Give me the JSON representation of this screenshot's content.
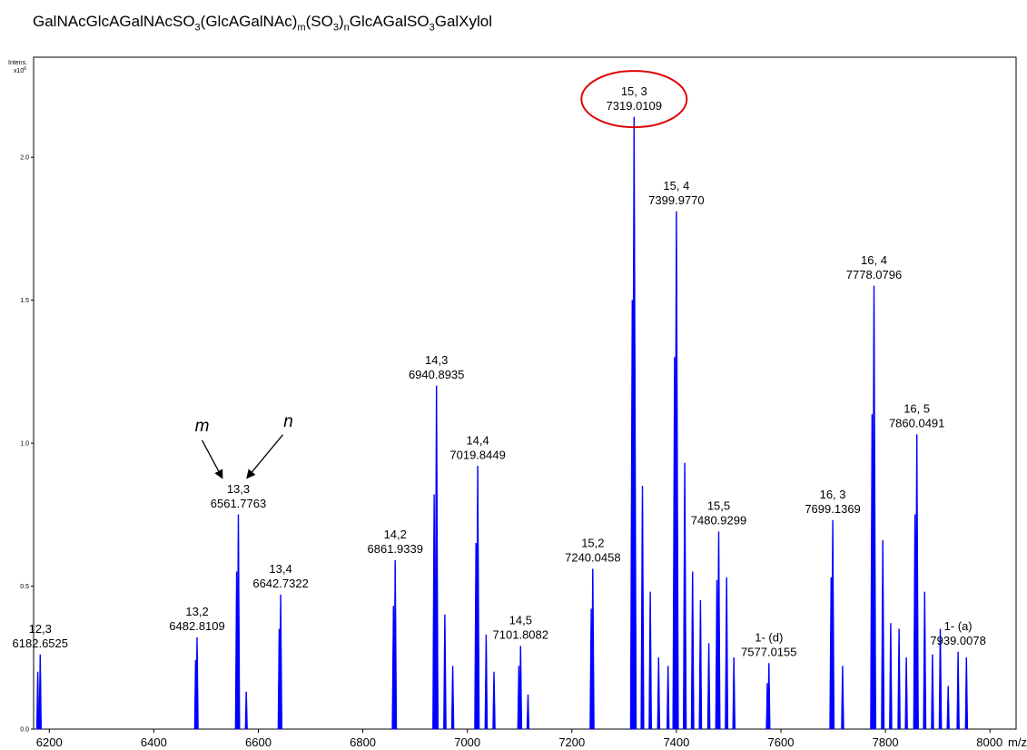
{
  "title_parts": {
    "p1": "GalNAcGlcAGalNAcSO",
    "s1": "3",
    "p2": "(GlcAGalNAc)",
    "s2": "m",
    "p3": "(SO",
    "s3": "3",
    "p4": ")",
    "s4": "n",
    "p5": "GlcAGalSO",
    "s5": "3",
    "p6": "GalXylol"
  },
  "colors": {
    "peak": "#0000ff",
    "highlight": "#e00000",
    "axis": "#000000"
  },
  "chart_data": {
    "type": "mass-spectrum",
    "ylabel_top": "Intens.",
    "ylabel_bottom": "x10",
    "ylabel_exp": "6",
    "xunit_label": "m/z",
    "xlim": [
      6170,
      8050
    ],
    "ylim": [
      0,
      2.35
    ],
    "x_ticks": [
      6200,
      6400,
      6600,
      6800,
      7000,
      7200,
      7400,
      7600,
      7800
    ],
    "x_tick_labels": [
      "6200",
      "6400",
      "6600",
      "6800",
      "7000",
      "7200",
      "7400",
      "7600",
      "7800",
      "8000"
    ],
    "last_x_tick": 8000,
    "y_ticks": [
      0.0,
      0.5,
      1.0,
      1.5,
      2.0
    ],
    "y_tick_labels": [
      "0.0",
      "0.5",
      "1.0",
      "1.5",
      "2.0"
    ],
    "labeled_peaks": [
      {
        "line1": "12,3",
        "line2": "6182.6525",
        "x": 6182.65,
        "y": 0.26
      },
      {
        "line1": "13,2",
        "line2": "6482.8109",
        "x": 6482.81,
        "y": 0.32
      },
      {
        "line1": "13,3",
        "line2": "6561.7763",
        "x": 6561.78,
        "y": 0.75
      },
      {
        "line1": "13,4",
        "line2": "6642.7322",
        "x": 6642.73,
        "y": 0.47
      },
      {
        "line1": "14,2",
        "line2": "6861.9339",
        "x": 6861.93,
        "y": 0.59
      },
      {
        "line1": "14,3",
        "line2": "6940.8935",
        "x": 6940.89,
        "y": 1.2
      },
      {
        "line1": "14,4",
        "line2": "7019.8449",
        "x": 7019.84,
        "y": 0.92
      },
      {
        "line1": "14,5",
        "line2": "7101.8082",
        "x": 7101.81,
        "y": 0.29
      },
      {
        "line1": "15,2",
        "line2": "7240.0458",
        "x": 7240.05,
        "y": 0.56
      },
      {
        "line1": "15, 3",
        "line2": "7319.0109",
        "x": 7319.01,
        "y": 2.14
      },
      {
        "line1": "15, 4",
        "line2": "7399.9770",
        "x": 7399.98,
        "y": 1.81
      },
      {
        "line1": "15,5",
        "line2": "7480.9299",
        "x": 7480.93,
        "y": 0.69
      },
      {
        "line1": "1- (d)",
        "line2": "7577.0155",
        "x": 7577.02,
        "y": 0.23
      },
      {
        "line1": "16, 3",
        "line2": "7699.1369",
        "x": 7699.14,
        "y": 0.73
      },
      {
        "line1": "16, 4",
        "line2": "7778.0796",
        "x": 7778.08,
        "y": 1.55
      },
      {
        "line1": "16, 5",
        "line2": "7860.0491",
        "x": 7860.05,
        "y": 1.03
      },
      {
        "line1": "1- (a)",
        "line2": "7939.0078",
        "x": 7939.01,
        "y": 0.27
      }
    ],
    "highlighted_peak": "15, 3",
    "other_peaks": [
      {
        "x": 6178.0,
        "y": 0.2
      },
      {
        "x": 6480.0,
        "y": 0.24
      },
      {
        "x": 6558.5,
        "y": 0.55
      },
      {
        "x": 6577.0,
        "y": 0.13
      },
      {
        "x": 6640.0,
        "y": 0.35
      },
      {
        "x": 6858.5,
        "y": 0.43
      },
      {
        "x": 6936.5,
        "y": 0.82
      },
      {
        "x": 6957.0,
        "y": 0.4
      },
      {
        "x": 6972.0,
        "y": 0.22
      },
      {
        "x": 7016.5,
        "y": 0.65
      },
      {
        "x": 7036.0,
        "y": 0.33
      },
      {
        "x": 7051.0,
        "y": 0.2
      },
      {
        "x": 7098.5,
        "y": 0.22
      },
      {
        "x": 7116.0,
        "y": 0.12
      },
      {
        "x": 7237.0,
        "y": 0.42
      },
      {
        "x": 7315.5,
        "y": 1.5
      },
      {
        "x": 7335.0,
        "y": 0.85
      },
      {
        "x": 7350.0,
        "y": 0.48
      },
      {
        "x": 7366.0,
        "y": 0.25
      },
      {
        "x": 7384.0,
        "y": 0.22
      },
      {
        "x": 7396.5,
        "y": 1.3
      },
      {
        "x": 7416.0,
        "y": 0.93
      },
      {
        "x": 7431.0,
        "y": 0.55
      },
      {
        "x": 7446.0,
        "y": 0.45
      },
      {
        "x": 7462.0,
        "y": 0.3
      },
      {
        "x": 7477.5,
        "y": 0.52
      },
      {
        "x": 7496.0,
        "y": 0.53
      },
      {
        "x": 7510.0,
        "y": 0.25
      },
      {
        "x": 7574.0,
        "y": 0.16
      },
      {
        "x": 7696.0,
        "y": 0.53
      },
      {
        "x": 7718.0,
        "y": 0.22
      },
      {
        "x": 7774.5,
        "y": 1.1
      },
      {
        "x": 7795.0,
        "y": 0.66
      },
      {
        "x": 7810.0,
        "y": 0.37
      },
      {
        "x": 7826.0,
        "y": 0.35
      },
      {
        "x": 7840.0,
        "y": 0.25
      },
      {
        "x": 7856.5,
        "y": 0.75
      },
      {
        "x": 7875.0,
        "y": 0.48
      },
      {
        "x": 7890.0,
        "y": 0.26
      },
      {
        "x": 7905.0,
        "y": 0.35
      },
      {
        "x": 7920.0,
        "y": 0.15
      },
      {
        "x": 7955.0,
        "y": 0.25
      }
    ],
    "annotations": [
      {
        "text": "m",
        "points_to": "13,3"
      },
      {
        "text": "n",
        "points_to": "13,3"
      }
    ]
  }
}
